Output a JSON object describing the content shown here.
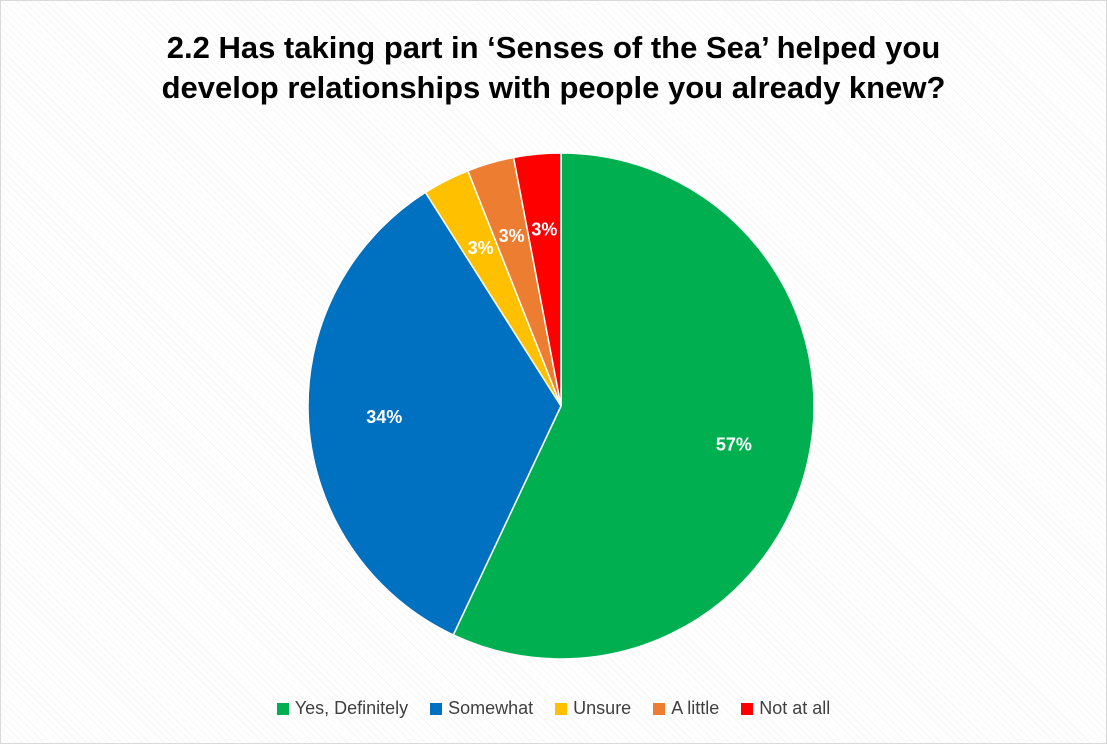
{
  "chart_data": {
    "type": "pie",
    "title_lines": [
      "2.2 Has taking part in ‘Senses of the Sea’ helped you",
      "develop relationships with people you already knew?"
    ],
    "categories": [
      "Yes, Definitely",
      "Somewhat",
      "Unsure",
      "A little",
      "Not at all"
    ],
    "values": [
      57,
      34,
      3,
      3,
      3
    ],
    "labels": [
      "57%",
      "34%",
      "3%",
      "3%",
      "3%"
    ],
    "colors": [
      "#00B050",
      "#0070C0",
      "#FFC000",
      "#ED7D31",
      "#FF0000"
    ],
    "start_angle_deg": 0,
    "direction": "clockwise",
    "legend_position": "bottom"
  }
}
